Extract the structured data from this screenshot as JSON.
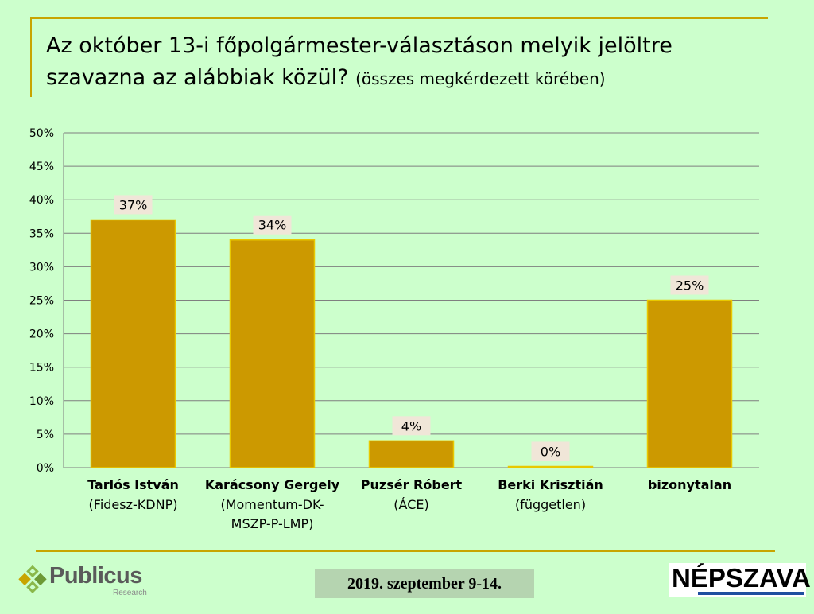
{
  "header": {
    "title": "Az október 13-i főpolgármester-választáson melyik jelöltre szavazna az alábbiak közül?",
    "subtitle": "(összes megkérdezett körében)"
  },
  "chart_data": {
    "type": "bar",
    "categories": [
      {
        "name": "Tarlós István",
        "party": [
          "(Fidesz-KDNP)"
        ]
      },
      {
        "name": "Karácsony Gergely",
        "party": [
          "(Momentum-DK-",
          "MSZP-P-LMP)"
        ]
      },
      {
        "name": "Puzsér Róbert",
        "party": [
          "(ÁCE)"
        ]
      },
      {
        "name": "Berki Krisztián",
        "party": [
          "(független)"
        ]
      },
      {
        "name": "bizonytalan",
        "party": []
      }
    ],
    "values": [
      37,
      34,
      4,
      0,
      25
    ],
    "value_labels": [
      "37%",
      "34%",
      "4%",
      "0%",
      "25%"
    ],
    "yticks": [
      "0%",
      "5%",
      "10%",
      "15%",
      "20%",
      "25%",
      "30%",
      "35%",
      "40%",
      "45%",
      "50%"
    ],
    "ylim": [
      0,
      50
    ],
    "grid": true,
    "bar_color": "#cc9900",
    "bar_edge_color": "#e8c800",
    "grid_color": "#7f7f7f",
    "label_bg": "#f0e6d8"
  },
  "footer": {
    "logo_name": "Publicus",
    "logo_sub": "Research",
    "date": "2019. szeptember 9-14.",
    "brand": "NÉPSZAVA"
  }
}
